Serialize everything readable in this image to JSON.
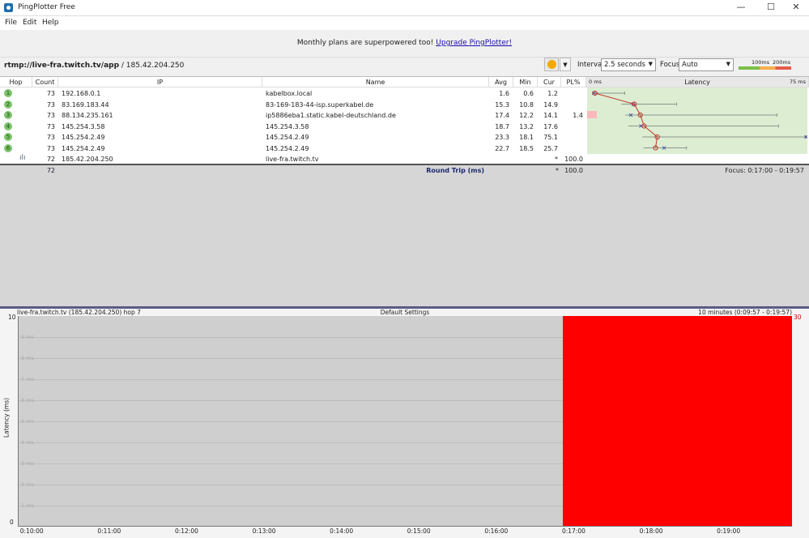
{
  "window": {
    "title": "PingPlotter Free",
    "minimize": "—",
    "maximize": "☐",
    "close": "✕"
  },
  "menu": [
    "File",
    "Edit",
    "Help"
  ],
  "banner": {
    "text": "Monthly plans are superpowered too! ",
    "link": "Upgrade PingPlotter!"
  },
  "address": {
    "target": "rtmp://live-fra.twitch.tv/app",
    "ip": " / 185.42.204.250"
  },
  "toolbar": {
    "interval_label": "Interval",
    "interval_value": "2.5 seconds",
    "focus_label": "Focus",
    "focus_value": "Auto",
    "scale_100": "100ms",
    "scale_200": "200ms",
    "colors": {
      "good": "#7bbf4a",
      "warn": "#f5b04a",
      "bad": "#e75a4a"
    }
  },
  "columns": [
    "Hop",
    "Count",
    "IP",
    "Name",
    "Avg",
    "Min",
    "Cur",
    "PL%",
    "Latency"
  ],
  "latency_axis": {
    "min_label": "0 ms",
    "max_label": "75 ms",
    "max": 75
  },
  "rows": [
    {
      "hop": "1",
      "count": "73",
      "ip": "192.168.0.1",
      "name": "kabelbox.local",
      "avg": "1.6",
      "min": "0.6",
      "cur": "1.2",
      "pl": "",
      "max_ms": 12
    },
    {
      "hop": "2",
      "count": "73",
      "ip": "83.169.183.44",
      "name": "83-169-183-44-isp.superkabel.de",
      "avg": "15.3",
      "min": "10.8",
      "cur": "14.9",
      "pl": "",
      "max_ms": 30
    },
    {
      "hop": "3",
      "count": "73",
      "ip": "88.134.235.161",
      "name": "ip5886eba1.static.kabel-deutschland.de",
      "avg": "17.4",
      "min": "12.2",
      "cur": "14.1",
      "pl": "1.4",
      "max_ms": 65
    },
    {
      "hop": "4",
      "count": "73",
      "ip": "145.254.3.58",
      "name": "145.254.3.58",
      "avg": "18.7",
      "min": "13.2",
      "cur": "17.6",
      "pl": "",
      "max_ms": 65.5
    },
    {
      "hop": "5",
      "count": "73",
      "ip": "145.254.2.49",
      "name": "145.254.2.49",
      "avg": "23.3",
      "min": "18.1",
      "cur": "75.1",
      "pl": "",
      "max_ms": 75
    },
    {
      "hop": "6",
      "count": "73",
      "ip": "145.254.2.49",
      "name": "145.254.2.49",
      "avg": "22.7",
      "min": "18.5",
      "cur": "25.7",
      "pl": "",
      "max_ms": 33.5
    },
    {
      "hop": "",
      "count": "72",
      "ip": "185.42.204.250",
      "name": "live-fra.twitch.tv",
      "avg": "",
      "min": "",
      "cur": "*",
      "pl": "100.0",
      "max_ms": null
    }
  ],
  "summary": {
    "count": "72",
    "label": "Round Trip (ms)",
    "cur": "*",
    "pl": "100.0",
    "focus": "Focus: 0:17:00 - 0:19:57"
  },
  "graph": {
    "title": "live-fra.twitch.tv (185.42.204.250) hop 7",
    "center": "Default Settings",
    "range": "10 minutes (0:09:57 - 0:19:57)",
    "ylabel": "Latency (ms)",
    "y_top": "10",
    "y_bottom": "0",
    "right_value": "30",
    "y_grid": [
      "9 ms",
      "8 ms",
      "7 ms",
      "6 ms",
      "5 ms",
      "4 ms",
      "3 ms",
      "2 ms",
      "1 ms"
    ],
    "x_ticks": [
      "0:10:00",
      "0:11:00",
      "0:12:00",
      "0:13:00",
      "0:14:00",
      "0:15:00",
      "0:16:00",
      "0:17:00",
      "0:18:00",
      "0:19:00"
    ],
    "loss_start": "0:16:57",
    "loss_color": "#ff0000"
  }
}
